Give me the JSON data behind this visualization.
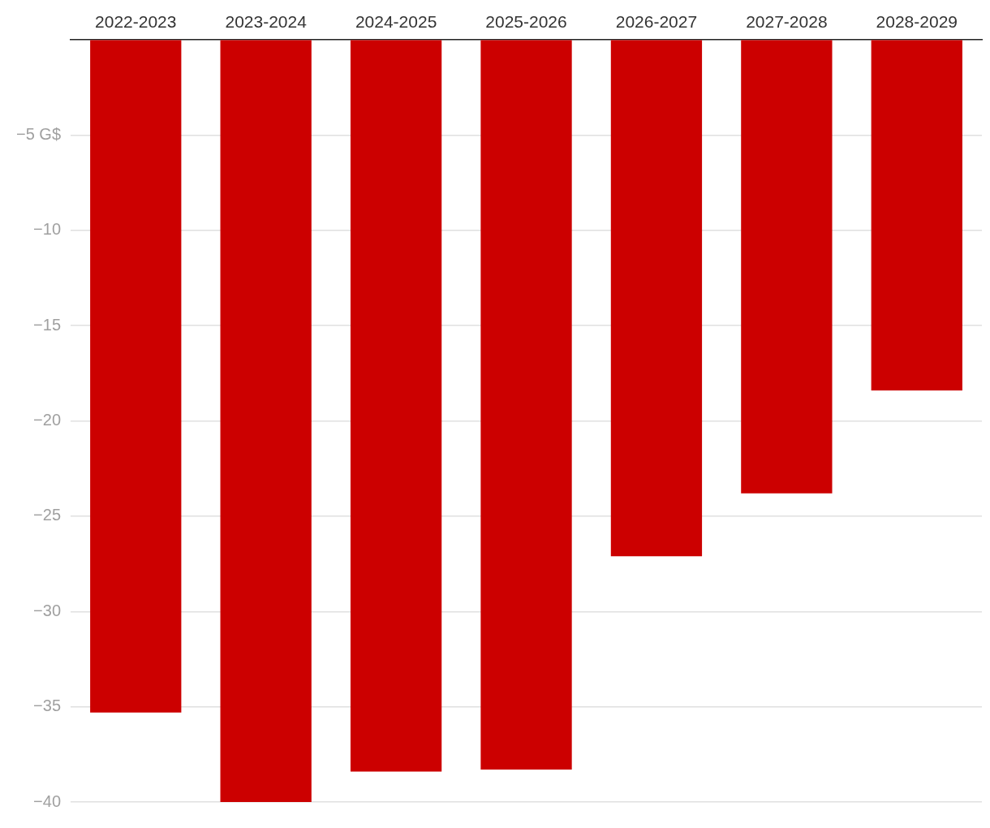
{
  "chart_data": {
    "type": "bar",
    "categories": [
      "2022-2023",
      "2023-2024",
      "2024-2025",
      "2025-2026",
      "2026-2027",
      "2027-2028",
      "2028-2029"
    ],
    "values": [
      -35.3,
      -40.0,
      -38.4,
      -38.3,
      -27.1,
      -23.8,
      -18.4
    ],
    "color": "#cc0000",
    "ylim": [
      -40,
      0
    ],
    "yticks": [
      {
        "value": -5,
        "label": "−5 G$"
      },
      {
        "value": -10,
        "label": "−10"
      },
      {
        "value": -15,
        "label": "−15"
      },
      {
        "value": -20,
        "label": "−20"
      },
      {
        "value": -25,
        "label": "−25"
      },
      {
        "value": -30,
        "label": "−30"
      },
      {
        "value": -35,
        "label": "−35"
      },
      {
        "value": -40,
        "label": "−40"
      }
    ],
    "grid": "y"
  }
}
